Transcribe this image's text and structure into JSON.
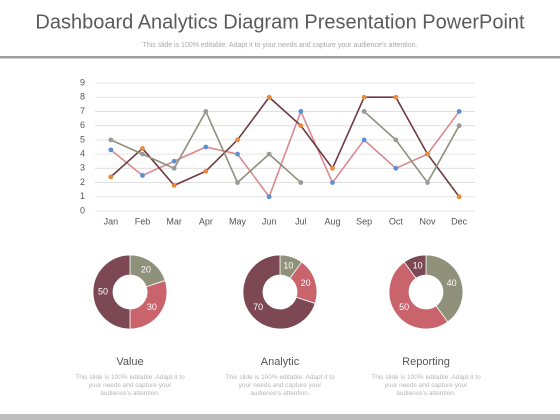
{
  "title": "Dashboard Analytics Diagram Presentation PowerPoint",
  "subtitle": "This slide is 100% editable. Adapt it to your needs and capture your audience's attention.",
  "chart_data": [
    {
      "type": "line",
      "categories": [
        "Jan",
        "Feb",
        "Mar",
        "Apr",
        "May",
        "Jun",
        "Jul",
        "Aug",
        "Sep",
        "Oct",
        "Nov",
        "Dec"
      ],
      "ylim": [
        0,
        9
      ],
      "yticks": [
        0,
        1,
        2,
        3,
        4,
        5,
        6,
        7,
        8,
        9
      ],
      "grid": true,
      "series": [
        {
          "color": "#d98a90",
          "marker_color": "#5b8fd6",
          "values": [
            4.3,
            2.5,
            3.5,
            4.5,
            4,
            1,
            7,
            2,
            5,
            3,
            4,
            7
          ]
        },
        {
          "color": "#6e3b42",
          "marker_color": "#e88a3c",
          "values": [
            2.4,
            4.4,
            1.8,
            2.8,
            5,
            8,
            6,
            3,
            8,
            8,
            4,
            1
          ]
        },
        {
          "color": "#8d917a",
          "marker_color": "#9a9a9a",
          "values": [
            5,
            4,
            3,
            7,
            2,
            4,
            2,
            null,
            7,
            5,
            2,
            6
          ]
        }
      ]
    },
    {
      "type": "pie",
      "title": "Value",
      "caption": "This slide is 100% editable. Adapt it to your needs and capture your audience's attention.",
      "values": [
        20,
        30,
        50
      ],
      "colors": [
        "#8f917a",
        "#c9646c",
        "#7b4853"
      ]
    },
    {
      "type": "pie",
      "title": "Analytic",
      "caption": "This slide is 100% editable. Adapt it to your needs and capture your audience's attention.",
      "values": [
        10,
        20,
        70
      ],
      "colors": [
        "#8f917a",
        "#c9646c",
        "#7b4853"
      ]
    },
    {
      "type": "pie",
      "title": "Reporting",
      "caption": "This slide is 100% editable. Adapt it to your needs and capture your audience's attention.",
      "values": [
        40,
        50,
        10
      ],
      "colors": [
        "#8f917a",
        "#c9646c",
        "#7b4853"
      ]
    }
  ]
}
